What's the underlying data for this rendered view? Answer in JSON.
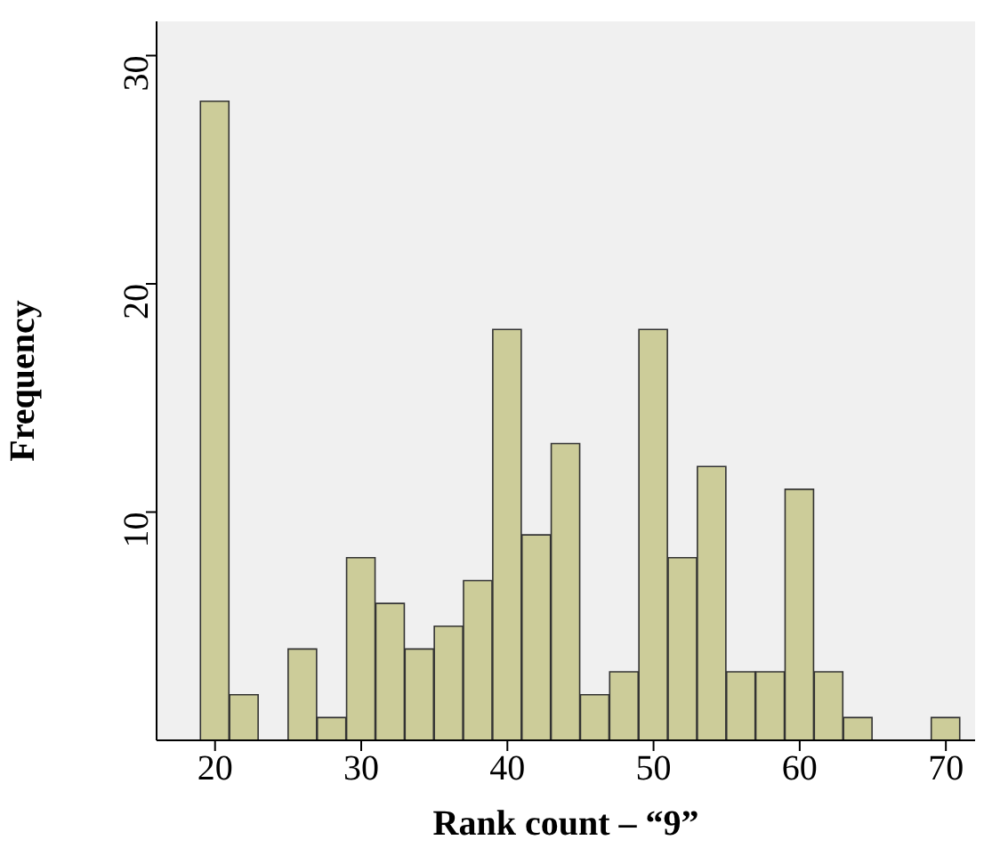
{
  "chart_data": {
    "type": "histogram",
    "xlabel": "Rank count – “9”",
    "ylabel": "Frequency",
    "bins": [
      19,
      21,
      23,
      25,
      27,
      29,
      31,
      33,
      35,
      37,
      39,
      41,
      43,
      45,
      47,
      49,
      51,
      53,
      55,
      57,
      59,
      61,
      63,
      65,
      67,
      69,
      71
    ],
    "values": [
      28,
      2,
      0,
      4,
      1,
      8,
      6,
      4,
      5,
      7,
      18,
      9,
      13,
      2,
      3,
      18,
      8,
      12,
      3,
      3,
      11,
      3,
      1,
      0,
      0,
      1
    ],
    "color": "#cccc99",
    "xlim": [
      16,
      72
    ],
    "xticks": [
      20,
      30,
      40,
      50,
      60,
      70
    ],
    "ylim": [
      0,
      31.5
    ],
    "yticks": [
      10,
      20,
      30
    ],
    "grid": false,
    "legend": false
  }
}
